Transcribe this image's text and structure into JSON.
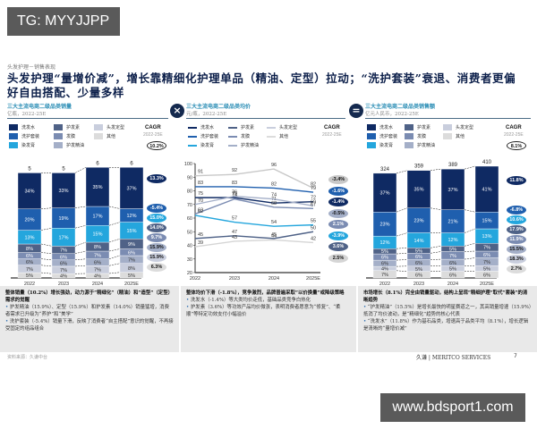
{
  "watermarks": {
    "top": "TG: MYYJJPP",
    "bottom": "www.bdsport1.com"
  },
  "header": {
    "breadcrumb": "头发护理－销售表现",
    "title": "头发护理“量增价减”，增长靠精细化护理单品（精油、定型）拉动；“洗护套装”衰退、消费者更偏好自由搭配、少量多样"
  },
  "legend_items": [
    "洗发水",
    "护发素",
    "头发定型",
    "洗护套装",
    "发膜",
    "其他",
    "染发膏",
    "护发精油"
  ],
  "cagr_label": "CAGR",
  "cagr_period": "2022-25E",
  "separators": {
    "first": "×",
    "second": "="
  },
  "chart_data": [
    {
      "type": "bar",
      "stacked": true,
      "title": "三大主流电商二级品类销量",
      "subtitle": "亿瓶，2022-25E",
      "categories": [
        "2022",
        "2023",
        "2024",
        "2025E"
      ],
      "totals": [
        5,
        5,
        6,
        6
      ],
      "total_cagr": "10.2%",
      "series": [
        {
          "name": "洗发水",
          "values": [
            34,
            33,
            35,
            37
          ],
          "cagr": "13.3%",
          "color": "#0f2a63"
        },
        {
          "name": "洗护套装",
          "values": [
            20,
            19,
            17,
            12
          ],
          "cagr": "-5.4%",
          "color": "#1f5fae"
        },
        {
          "name": "染发膏",
          "values": [
            13,
            17,
            15,
            15
          ],
          "cagr": "15.0%",
          "color": "#24a6dd"
        },
        {
          "name": "护发素",
          "values": [
            8,
            7,
            8,
            9
          ],
          "cagr": "14.0%",
          "color": "#4f6287"
        },
        {
          "name": "发膜",
          "values": [
            6,
            6,
            7,
            6
          ],
          "cagr": "9.7%",
          "color": "#7b8cb2"
        },
        {
          "name": "护发精油",
          "values": [
            6,
            6,
            6,
            7
          ],
          "cagr": "15.9%",
          "color": "#a4afc8"
        },
        {
          "name": "头发定型",
          "values": [
            7,
            7,
            7,
            8
          ],
          "cagr": "15.9%",
          "color": "#c9cedd"
        },
        {
          "name": "其他",
          "values": [
            5,
            4,
            4,
            5
          ],
          "cagr": "6.3%",
          "color": "#dcdcdc"
        }
      ],
      "xlabel": "",
      "ylabel": ""
    },
    {
      "type": "line",
      "title": "三大主流电商二级品类均价",
      "subtitle": "元/瓶，2022-25E",
      "x": [
        "2022",
        "2023",
        "2024",
        "2025E"
      ],
      "ylim": [
        20,
        100
      ],
      "yticks": [
        20,
        30,
        40,
        50,
        60,
        70,
        80,
        90,
        100
      ],
      "series": [
        {
          "name": "头发定型",
          "values": [
            91,
            92,
            96,
            82
          ],
          "cagr": "-3.4%",
          "color": "#c8c8c8"
        },
        {
          "name": "洗护套装",
          "values": [
            83,
            83,
            82,
            79
          ],
          "cagr": "-1.6%",
          "color": "#1f5fae"
        },
        {
          "name": "洗发水",
          "values": [
            75,
            75,
            71,
            72
          ],
          "cagr": "-1.4%",
          "color": "#0f2a63"
        },
        {
          "name": "发膜",
          "values": [
            70,
            76,
            74,
            69
          ],
          "cagr": "-0.5%",
          "color": "#a4afc8"
        },
        {
          "name": "护发精油",
          "values": [
            63,
            74,
            68,
            67
          ],
          "cagr": "2.1%",
          "color": "#7b8cb2"
        },
        {
          "name": "染发膏",
          "values": [
            62,
            57,
            54,
            55
          ],
          "cagr": "-3.9%",
          "color": "#24a6dd"
        },
        {
          "name": "护发素",
          "values": [
            45,
            47,
            45,
            50
          ],
          "cagr": "3.6%",
          "color": "#4f6287"
        },
        {
          "name": "其他",
          "values": [
            39,
            43,
            44,
            42
          ],
          "cagr": "2.5%",
          "color": "#d5d5d5"
        }
      ],
      "xlabel": "",
      "ylabel": ""
    },
    {
      "type": "bar",
      "stacked": true,
      "title": "三大主流电商二级品类销售额",
      "subtitle": "亿元人民币，2022-25E",
      "categories": [
        "2022",
        "2023",
        "2024",
        "2025E"
      ],
      "totals": [
        324,
        359,
        389,
        410
      ],
      "total_cagr": "8.1%",
      "series": [
        {
          "name": "洗发水",
          "values": [
            37,
            35,
            37,
            41
          ],
          "cagr": "11.8%",
          "color": "#0f2a63"
        },
        {
          "name": "洗护套装",
          "values": [
            23,
            23,
            21,
            15
          ],
          "cagr": "-6.8%",
          "color": "#1f5fae"
        },
        {
          "name": "染发膏",
          "values": [
            12,
            14,
            12,
            13
          ],
          "cagr": "10.6%",
          "color": "#24a6dd"
        },
        {
          "name": "护发素",
          "values": [
            5,
            5,
            5,
            7
          ],
          "cagr": "17.9%",
          "color": "#4f6287"
        },
        {
          "name": "发膜",
          "values": [
            6,
            6,
            7,
            6
          ],
          "cagr": "11.9%",
          "color": "#7b8cb2"
        },
        {
          "name": "护发精油",
          "values": [
            6,
            6,
            6,
            7
          ],
          "cagr": "15.5%",
          "color": "#a4afc8"
        },
        {
          "name": "头发定型",
          "values": [
            4,
            5,
            5,
            5
          ],
          "cagr": "18.3%",
          "color": "#c9cedd"
        },
        {
          "name": "其他",
          "values": [
            7,
            6,
            6,
            6
          ],
          "cagr": "2.7%",
          "color": "#dcdcdc"
        }
      ],
      "xlabel": "",
      "ylabel": ""
    }
  ],
  "notes": [
    {
      "heading": "整体销量（10.2%）增长强劲，动力源于“精细化”（精油）和“造型”（定型）需求的觉醒",
      "bullets": [
        "护发精油（15.9%）、定型（15.9%）和护发素（14.0%）销量猛增，消费者需求已升级为“养护”和“美学”",
        "洗护套装（-5.4%）销量下滑，反映了消费者“自主搭配”意识的觉醒，不再接受固定的组品组合"
      ]
    },
    {
      "heading": "整体均价下滑（-1.8%），竞争激烈，品牌普遍采取“以价换量”或降级策略",
      "bullets": [
        "洗发水（-1.4%）等大类均价走低，基础品类竞争白热化",
        "护发素（3.6%）等功效产品均价微涨，表明消费者愿意为“修复”、“柔顺”等特定功效支付小幅溢价"
      ]
    },
    {
      "heading": "市场增长（8.1%）完全由销量驱动，结构上呈现“精细护理”取代“套装”的清晰趋势",
      "bullets": [
        "“护发精油”（15.5%）是增长最快的明星赛道之一，其高销量增速（15.9%）抵消了均价波动，是“精细化”趋势的核心代表",
        "“洗发水”（11.8%）作为基石品类，增速高于品类平均（8.1%），增长逻辑是清晰的“量增价减”"
      ]
    }
  ],
  "footer": {
    "source": "资料来源：久谦中台",
    "logo": "久谦 | MERITCO SERVICES",
    "page": "7"
  }
}
